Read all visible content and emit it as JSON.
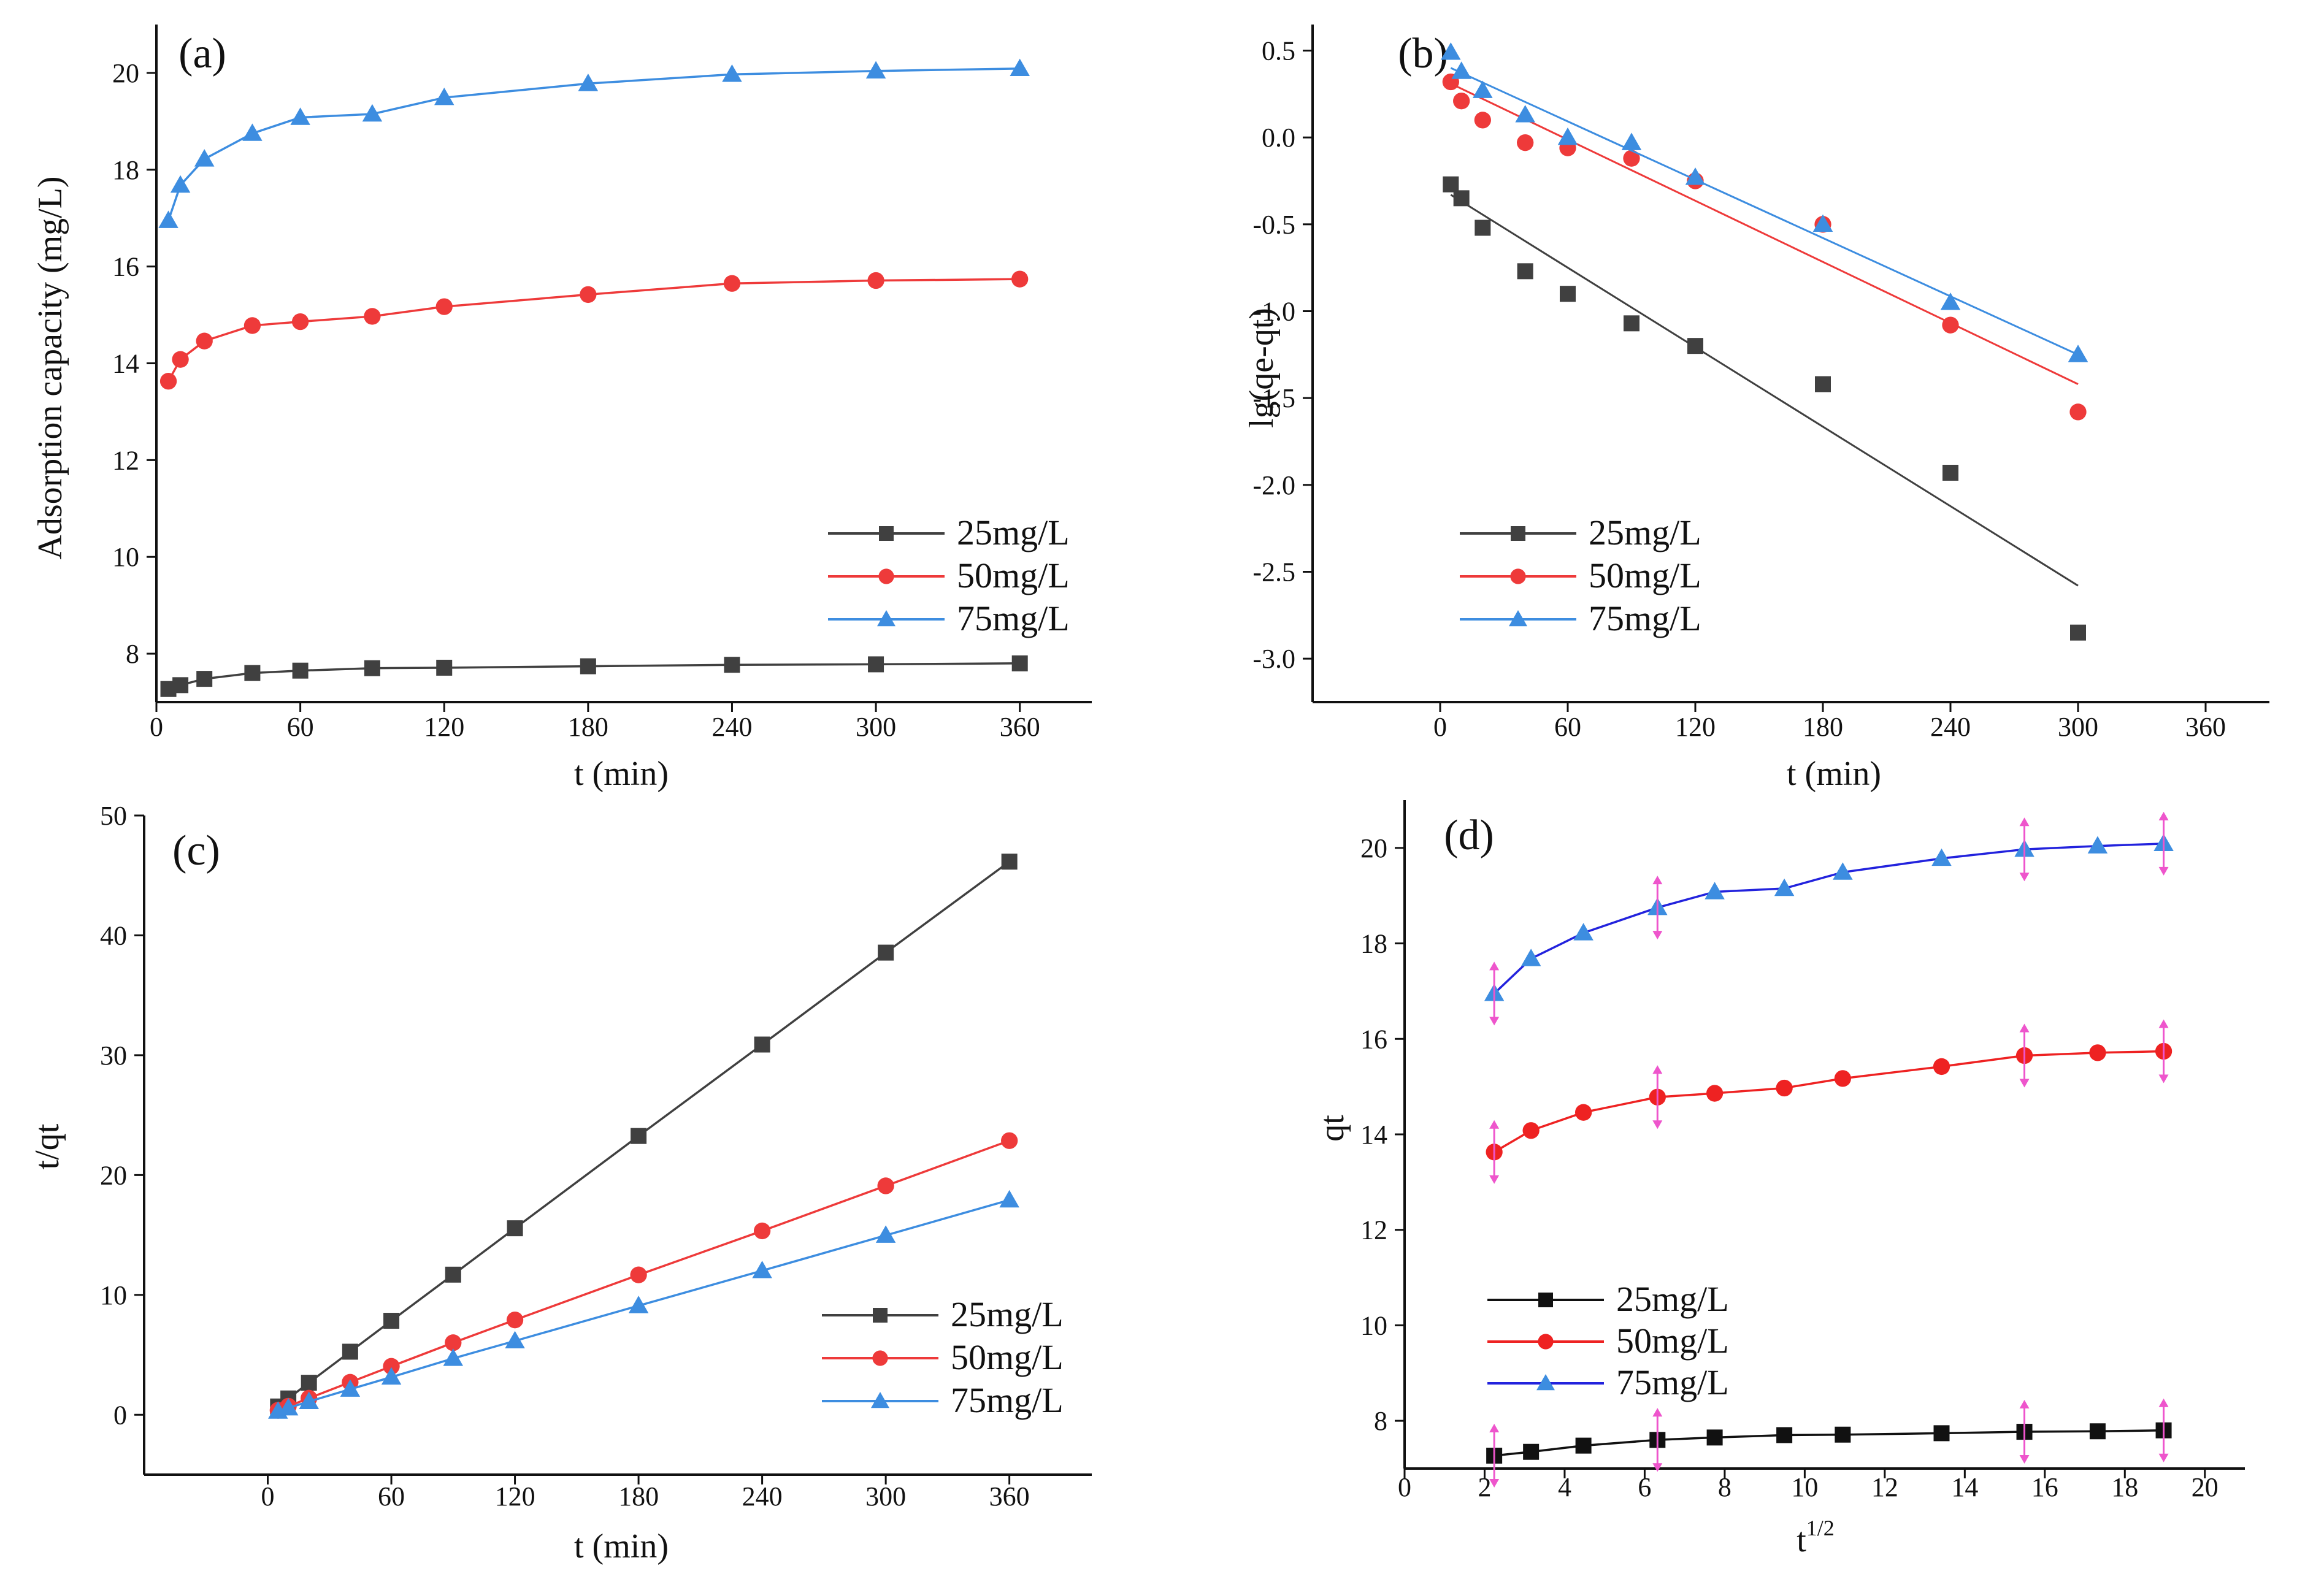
{
  "chart_data": [
    {
      "id": "a",
      "type": "line",
      "panel_label": "(a)",
      "xlabel": "t (min)",
      "ylabel": "Adsorption capacity (mg/L)",
      "xlim": [
        0,
        390
      ],
      "ylim": [
        7,
        21
      ],
      "xticks": [
        "0",
        "60",
        "120",
        "180",
        "240",
        "300",
        "360"
      ],
      "yticks": [
        "8",
        "10",
        "12",
        "14",
        "16",
        "18",
        "20"
      ],
      "legend": "bottom-right",
      "x": [
        5,
        10,
        20,
        40,
        60,
        90,
        120,
        180,
        240,
        300,
        360
      ],
      "series": [
        {
          "name": "25mg/L",
          "color": "#404040",
          "marker": "square",
          "values": [
            7.27,
            7.35,
            7.48,
            7.6,
            7.65,
            7.7,
            7.71,
            7.74,
            7.77,
            7.78,
            7.8
          ]
        },
        {
          "name": "50mg/L",
          "color": "#ee3a3a",
          "marker": "circle",
          "values": [
            13.63,
            14.08,
            14.46,
            14.78,
            14.86,
            14.97,
            15.17,
            15.42,
            15.65,
            15.71,
            15.74
          ]
        },
        {
          "name": "75mg/L",
          "color": "#3d8de0",
          "marker": "triangle",
          "values": [
            16.95,
            17.68,
            18.22,
            18.75,
            19.08,
            19.15,
            19.49,
            19.78,
            19.97,
            20.04,
            20.09
          ]
        }
      ]
    },
    {
      "id": "b",
      "type": "scatter",
      "panel_label": "(b)",
      "xlabel": "t (min)",
      "ylabel": "lg(qe-qt)",
      "xlim": [
        -60,
        390
      ],
      "ylim": [
        -3.25,
        0.65
      ],
      "xticks": [
        "0",
        "60",
        "120",
        "180",
        "240",
        "300",
        "360"
      ],
      "yticks": [
        "0.5",
        "0.0",
        "-0.5",
        "-1.0",
        "-1.5",
        "-2.0",
        "-2.5",
        "-3.0"
      ],
      "legend": "bottom-left",
      "x": [
        5,
        10,
        20,
        40,
        60,
        90,
        120,
        180,
        240,
        300
      ],
      "series": [
        {
          "name": "25mg/L",
          "color": "#404040",
          "marker": "square",
          "values": [
            -0.27,
            -0.35,
            -0.52,
            -0.77,
            -0.9,
            -1.07,
            -1.2,
            -1.42,
            -1.93,
            -2.85
          ],
          "fit": [
            [
              5,
              -0.33
            ],
            [
              300,
              -2.58
            ]
          ]
        },
        {
          "name": "50mg/L",
          "color": "#ee3a3a",
          "marker": "circle",
          "values": [
            0.32,
            0.21,
            0.1,
            -0.03,
            -0.06,
            -0.12,
            -0.25,
            -0.5,
            -1.08,
            -1.58
          ],
          "fit": [
            [
              5,
              0.31
            ],
            [
              300,
              -1.42
            ]
          ]
        },
        {
          "name": "75mg/L",
          "color": "#3d8de0",
          "marker": "triangle",
          "values": [
            0.49,
            0.38,
            0.27,
            0.13,
            0.0,
            -0.03,
            -0.23,
            -0.5,
            -0.95,
            -1.25
          ],
          "fit": [
            [
              5,
              0.4
            ],
            [
              300,
              -1.25
            ]
          ]
        }
      ]
    },
    {
      "id": "c",
      "type": "line",
      "panel_label": "(c)",
      "xlabel": "t (min)",
      "ylabel": "t/qt",
      "xlim": [
        -60,
        400
      ],
      "ylim": [
        -5,
        50
      ],
      "xticks": [
        "0",
        "60",
        "120",
        "180",
        "240",
        "300",
        "360"
      ],
      "yticks": [
        "0",
        "10",
        "20",
        "30",
        "40",
        "50"
      ],
      "legend": "bottom-right",
      "x": [
        5,
        10,
        20,
        40,
        60,
        90,
        120,
        180,
        240,
        300,
        360
      ],
      "series": [
        {
          "name": "25mg/L",
          "color": "#404040",
          "marker": "square",
          "values": [
            0.69,
            1.36,
            2.67,
            5.26,
            7.84,
            11.69,
            15.56,
            23.26,
            30.89,
            38.56,
            46.15
          ]
        },
        {
          "name": "50mg/L",
          "color": "#ee3a3a",
          "marker": "circle",
          "values": [
            0.37,
            0.71,
            1.38,
            2.71,
            4.04,
            6.01,
            7.91,
            11.67,
            15.34,
            19.1,
            22.87
          ]
        },
        {
          "name": "75mg/L",
          "color": "#3d8de0",
          "marker": "triangle",
          "values": [
            0.29,
            0.57,
            1.1,
            2.13,
            3.14,
            4.7,
            6.16,
            9.1,
            12.02,
            14.97,
            17.92
          ]
        }
      ]
    },
    {
      "id": "d",
      "type": "line",
      "panel_label": "(d)",
      "xlabel": "t",
      "xlabel_sup": "1/2",
      "ylabel": "qt",
      "xlim": [
        0,
        21
      ],
      "ylim": [
        7,
        21
      ],
      "xticks": [
        "0",
        "2",
        "4",
        "6",
        "8",
        "10",
        "12",
        "14",
        "16",
        "18",
        "20"
      ],
      "yticks": [
        "8",
        "10",
        "12",
        "14",
        "16",
        "18",
        "20"
      ],
      "legend": "bottom-left",
      "x": [
        2.24,
        3.16,
        4.47,
        6.32,
        7.75,
        9.49,
        10.95,
        13.42,
        15.49,
        17.32,
        18.97
      ],
      "markers_x": [
        2.24,
        6.32,
        15.49,
        18.97
      ],
      "series": [
        {
          "name": "25mg/L",
          "color": "#111111",
          "line": "#111111",
          "marker": "square",
          "values": [
            7.27,
            7.35,
            7.48,
            7.6,
            7.65,
            7.7,
            7.71,
            7.74,
            7.77,
            7.78,
            7.8
          ]
        },
        {
          "name": "50mg/L",
          "color": "#ee2222",
          "line": "#ee2222",
          "marker": "circle",
          "values": [
            13.63,
            14.08,
            14.46,
            14.78,
            14.86,
            14.97,
            15.17,
            15.42,
            15.65,
            15.71,
            15.74
          ]
        },
        {
          "name": "75mg/L",
          "color": "#3d8de0",
          "line": "#2222dd",
          "marker": "triangle",
          "values": [
            16.95,
            17.68,
            18.22,
            18.75,
            19.08,
            19.15,
            19.49,
            19.78,
            19.97,
            20.04,
            20.09
          ]
        }
      ]
    }
  ],
  "colors": {
    "marker_arrow": "#ee55cc",
    "axis": "#111111"
  }
}
